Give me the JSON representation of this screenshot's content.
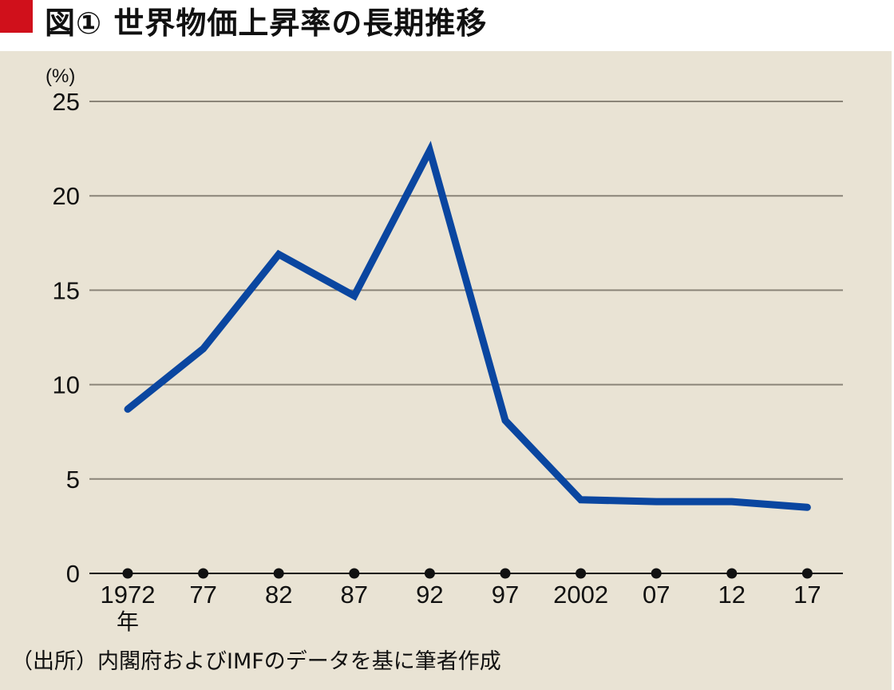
{
  "title": {
    "text": "図① 世界物価上昇率の長期推移",
    "accent_color": "#d0101b"
  },
  "source_note": "（出所）内閣府およびIMFのデータを基に筆者作成",
  "chart_data": {
    "type": "line",
    "title": "図① 世界物価上昇率の長期推移",
    "xlabel": "年",
    "ylabel": "(%)",
    "categories": [
      "1972",
      "77",
      "82",
      "87",
      "92",
      "97",
      "2002",
      "07",
      "12",
      "17"
    ],
    "x": [
      1972,
      1977,
      1982,
      1987,
      1992,
      1997,
      2002,
      2007,
      2012,
      2017
    ],
    "series": [
      {
        "name": "世界物価上昇率",
        "color": "#0a46a0",
        "values": [
          8.7,
          11.9,
          16.9,
          14.7,
          22.4,
          8.1,
          3.9,
          3.8,
          3.8,
          3.5
        ]
      }
    ],
    "ylim": [
      0,
      25
    ],
    "yticks": [
      0,
      5,
      10,
      15,
      20,
      25
    ],
    "grid": true,
    "legend": "none",
    "x_tick_suffix_first": "年"
  },
  "colors": {
    "background": "#e9e3d4",
    "grid": "#8a8478",
    "axis": "#111111",
    "line": "#0a46a0"
  }
}
